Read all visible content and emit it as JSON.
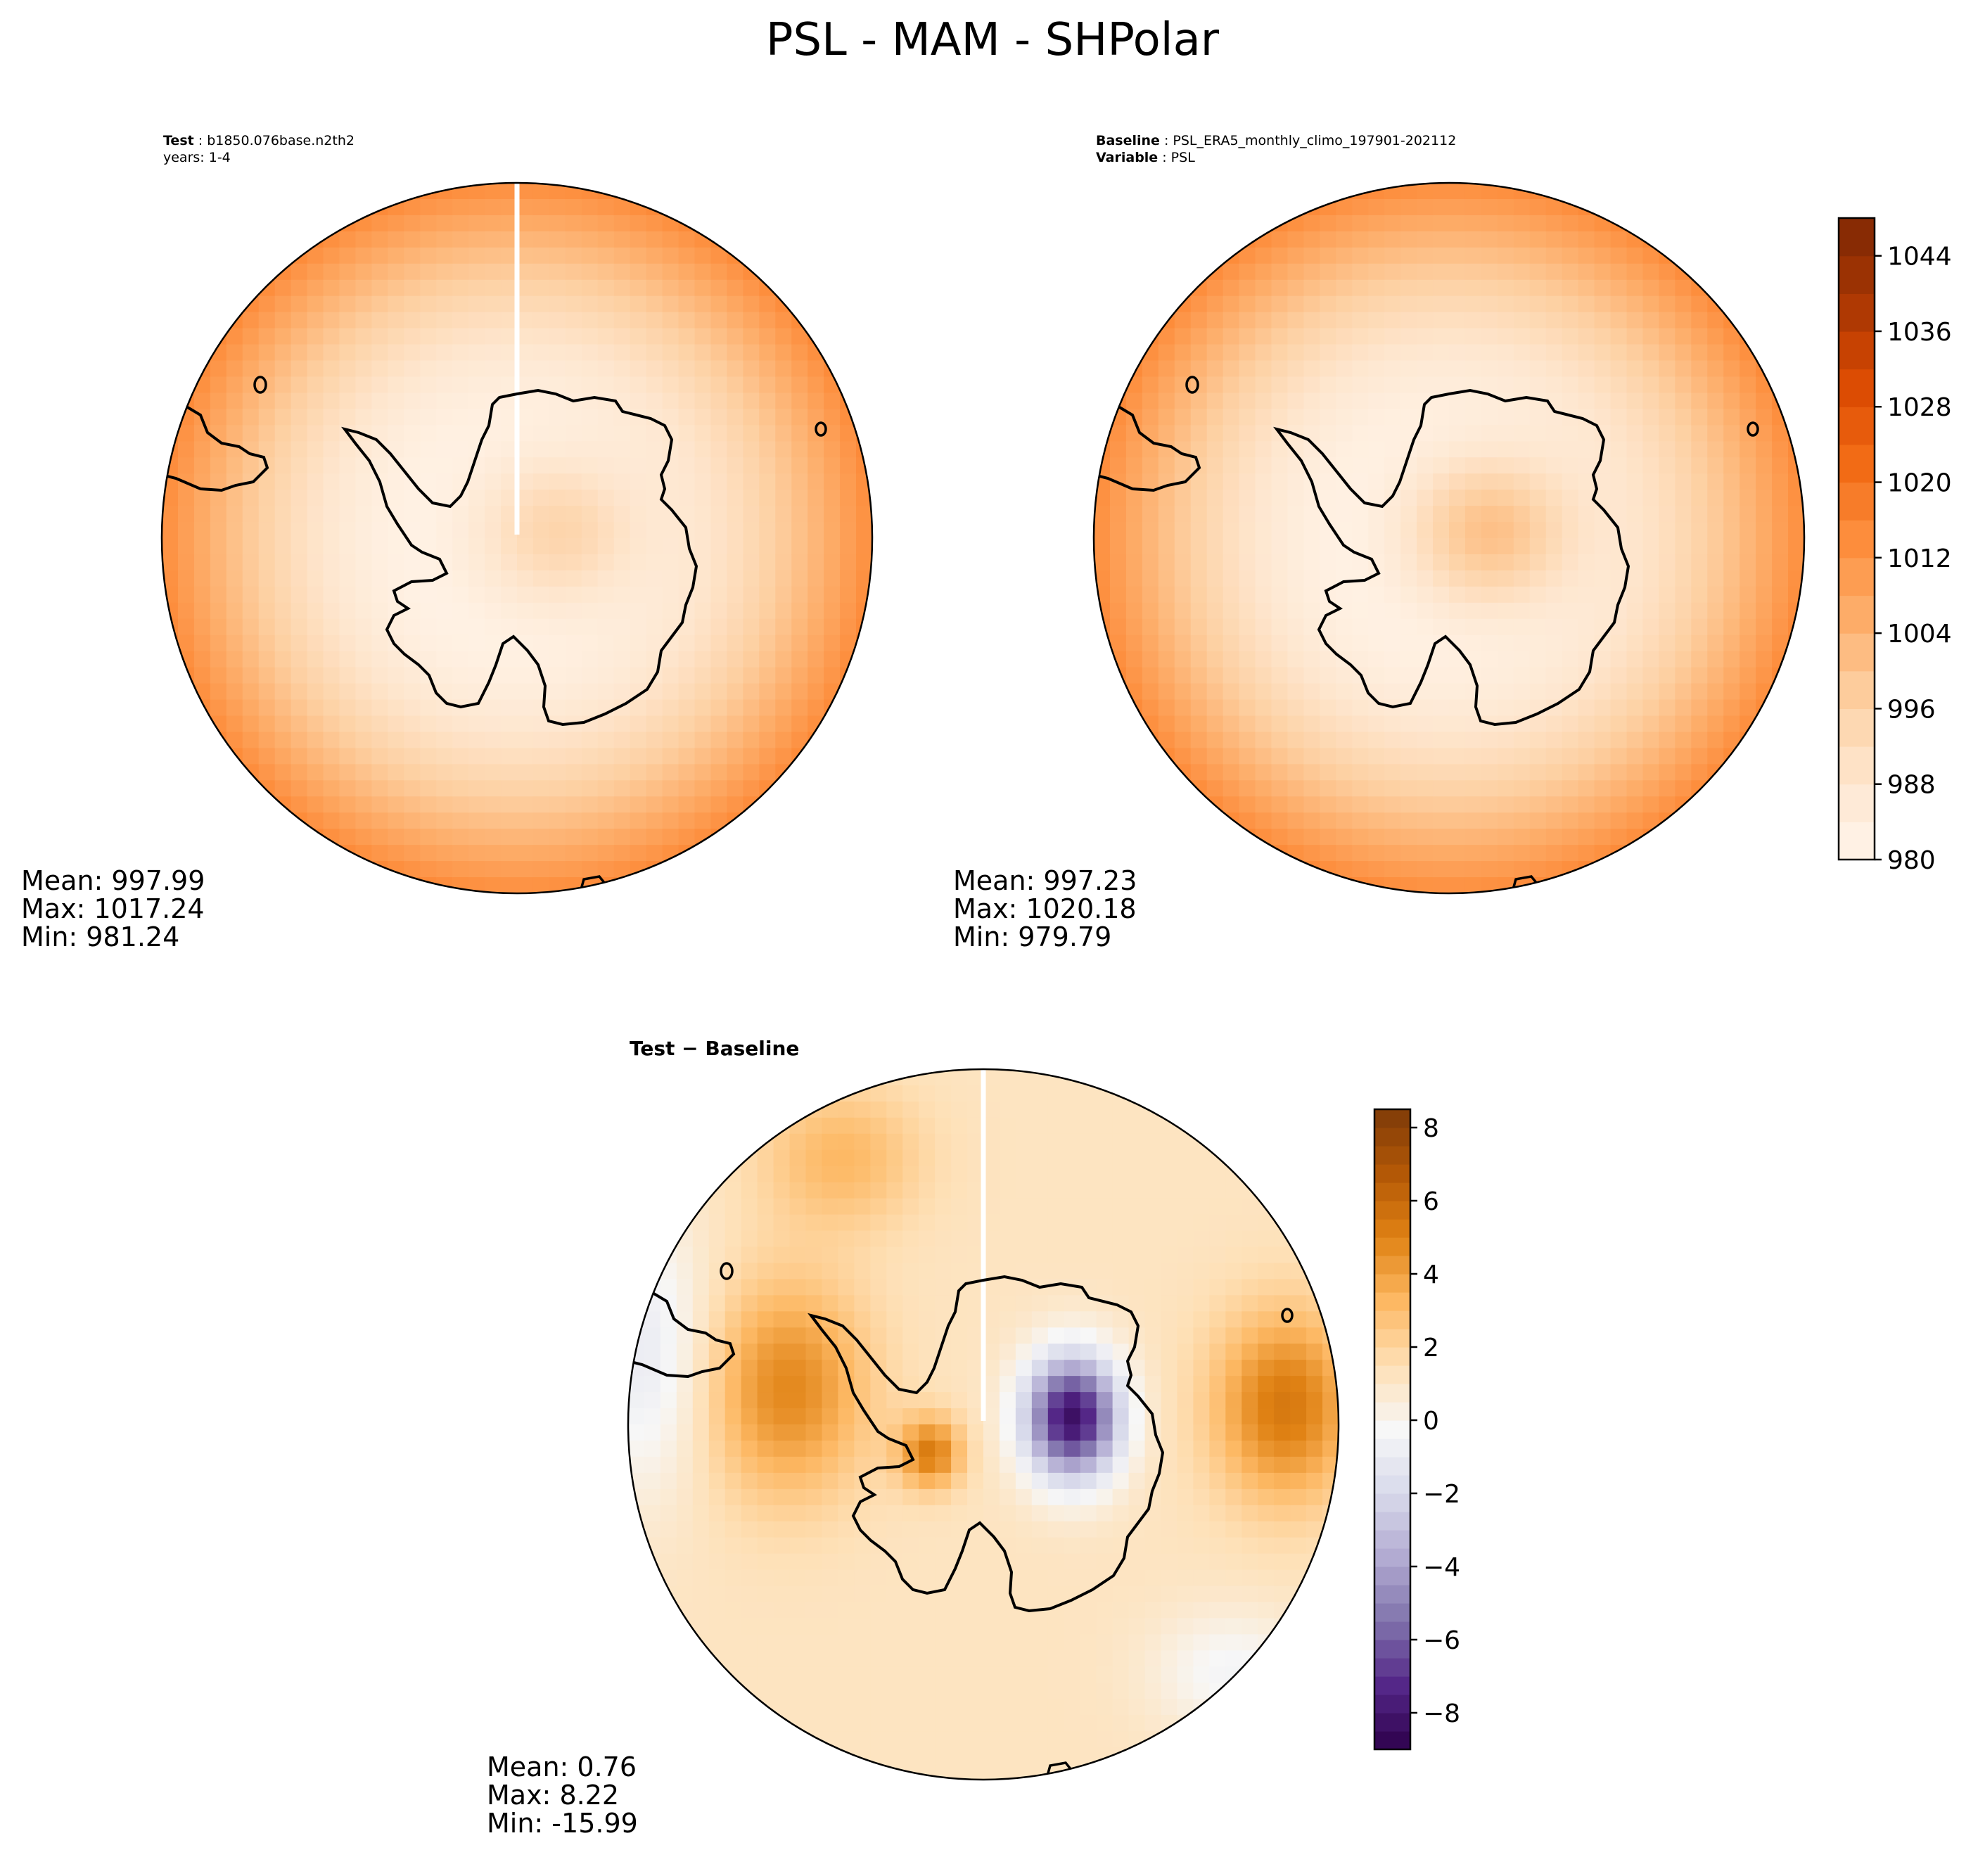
{
  "figure": {
    "title": "PSL - MAM - SHPolar"
  },
  "chart_data": [
    {
      "type": "heatmap",
      "projection": "south-polar-stereographic",
      "panel": "test",
      "header": [
        {
          "label": "Test",
          "value": "b1850.076base.n2th2"
        },
        {
          "label": "",
          "value": "years: 1-4"
        }
      ],
      "stats": {
        "mean": "Mean: 997.99",
        "max": "Max: 1017.24",
        "min": "Min: 981.24"
      },
      "colormap": "Oranges",
      "range": [
        980,
        1048
      ]
    },
    {
      "type": "heatmap",
      "projection": "south-polar-stereographic",
      "panel": "baseline",
      "header": [
        {
          "label": "Baseline",
          "value": "PSL_ERA5_monthly_climo_197901-202112"
        },
        {
          "label": "Variable",
          "value": "PSL"
        }
      ],
      "stats": {
        "mean": "Mean: 997.23",
        "max": "Max: 1020.18",
        "min": "Min: 979.79"
      },
      "colormap": "Oranges",
      "range": [
        980,
        1048
      ],
      "colorbar": {
        "ticks": [
          "980",
          "988",
          "996",
          "1004",
          "1012",
          "1020",
          "1028",
          "1036",
          "1044"
        ],
        "tick_values": [
          980,
          988,
          996,
          1004,
          1012,
          1020,
          1028,
          1036,
          1044
        ],
        "min": 980,
        "max": 1048,
        "levels": 17
      }
    },
    {
      "type": "heatmap",
      "projection": "south-polar-stereographic",
      "panel": "difference",
      "header_bold": "Test − Baseline",
      "stats": {
        "mean": "Mean:  0.76",
        "max": "Max:  8.22",
        "min": "Min: -15.99"
      },
      "colormap": "PuOr_r",
      "range": [
        -9,
        8.5
      ],
      "colorbar": {
        "ticks": [
          "−8",
          "−6",
          "−4",
          "−2",
          "0",
          "2",
          "4",
          "6",
          "8"
        ],
        "tick_values": [
          -8,
          -6,
          -4,
          -2,
          0,
          2,
          4,
          6,
          8
        ],
        "min": -9,
        "max": 8.5,
        "levels": 35
      }
    }
  ],
  "colors": {
    "oranges": [
      "#fff5eb",
      "#fee6ce",
      "#fdd0a2",
      "#fdae6b",
      "#fd8d3c",
      "#f16913",
      "#d94801",
      "#a63603",
      "#7f2704"
    ],
    "diverging": [
      "#2d004b",
      "#542788",
      "#8073ac",
      "#b2abd2",
      "#d8daeb",
      "#f7f7f7",
      "#fee0b6",
      "#fdb863",
      "#e08214",
      "#b35806",
      "#7f3b08"
    ],
    "coast": "#000000",
    "missing_line": "#ffffff"
  }
}
